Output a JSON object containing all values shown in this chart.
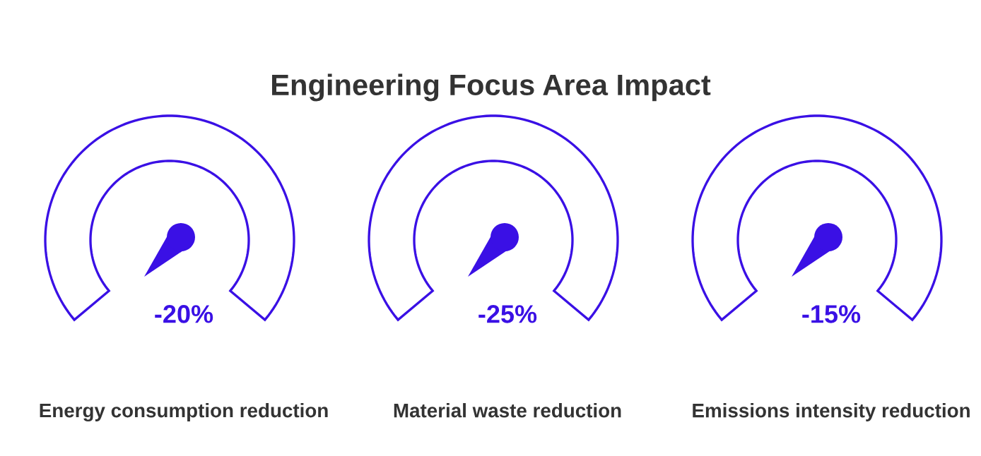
{
  "chart_data": {
    "type": "other",
    "title": "Engineering Focus Area Impact",
    "categories": [
      "Energy consumption reduction",
      "Material waste reduction",
      "Emissions intensity reduction"
    ],
    "values": [
      -20,
      -25,
      -15
    ],
    "value_labels": [
      "-20%",
      "-25%",
      "-15%"
    ],
    "color": "#3a10e5"
  }
}
